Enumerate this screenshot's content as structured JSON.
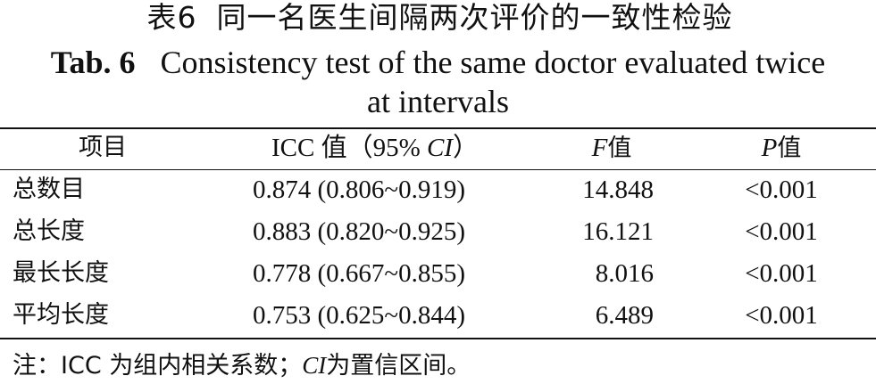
{
  "title_cn": {
    "label": "表6",
    "text": "同一名医生间隔两次评价的一致性检验"
  },
  "title_en": {
    "label": "Tab. 6",
    "line1": "Consistency test of the same doctor evaluated twice",
    "line2": "at intervals"
  },
  "table": {
    "headers": {
      "item": "项目",
      "icc_prefix": "ICC 值（95% ",
      "icc_ci": "CI",
      "icc_suffix": "）",
      "f_symbol": "F",
      "f_suffix": "值",
      "p_symbol": "P",
      "p_suffix": "值"
    },
    "rows": [
      {
        "item": "总数目",
        "icc": "0.874 (0.806~0.919)",
        "f": "14.848",
        "p": "<0.001"
      },
      {
        "item": "总长度",
        "icc": "0.883 (0.820~0.925)",
        "f": "16.121",
        "p": "<0.001"
      },
      {
        "item": "最长长度",
        "icc": "0.778 (0.667~0.855)",
        "f": "8.016",
        "p": "<0.001"
      },
      {
        "item": "平均长度",
        "icc": "0.753 (0.625~0.844)",
        "f": "6.489",
        "p": "<0.001"
      }
    ]
  },
  "note": {
    "prefix": "注：ICC 为组内相关系数；",
    "ci": "CI",
    "suffix": "为置信区间。"
  }
}
